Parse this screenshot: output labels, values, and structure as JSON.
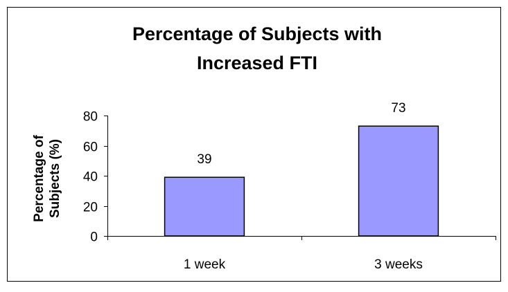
{
  "chart_data": {
    "type": "bar",
    "title_lines": [
      "Percentage of Subjects with",
      "Increased FTI"
    ],
    "ylabel_lines": [
      "Percentage of",
      "Subjects (%)"
    ],
    "xlabel": "",
    "categories": [
      "1 week",
      "3 weeks"
    ],
    "values": [
      39,
      73
    ],
    "data_labels": [
      "39",
      "73"
    ],
    "ylim": [
      0,
      80
    ],
    "yticks": [
      0,
      20,
      40,
      60,
      80
    ],
    "ytick_labels": [
      "0",
      "20",
      "40",
      "60",
      "80"
    ],
    "grid": false,
    "legend": "none",
    "bar_color": "#9999ff",
    "bar_edge_color": "#000000"
  }
}
